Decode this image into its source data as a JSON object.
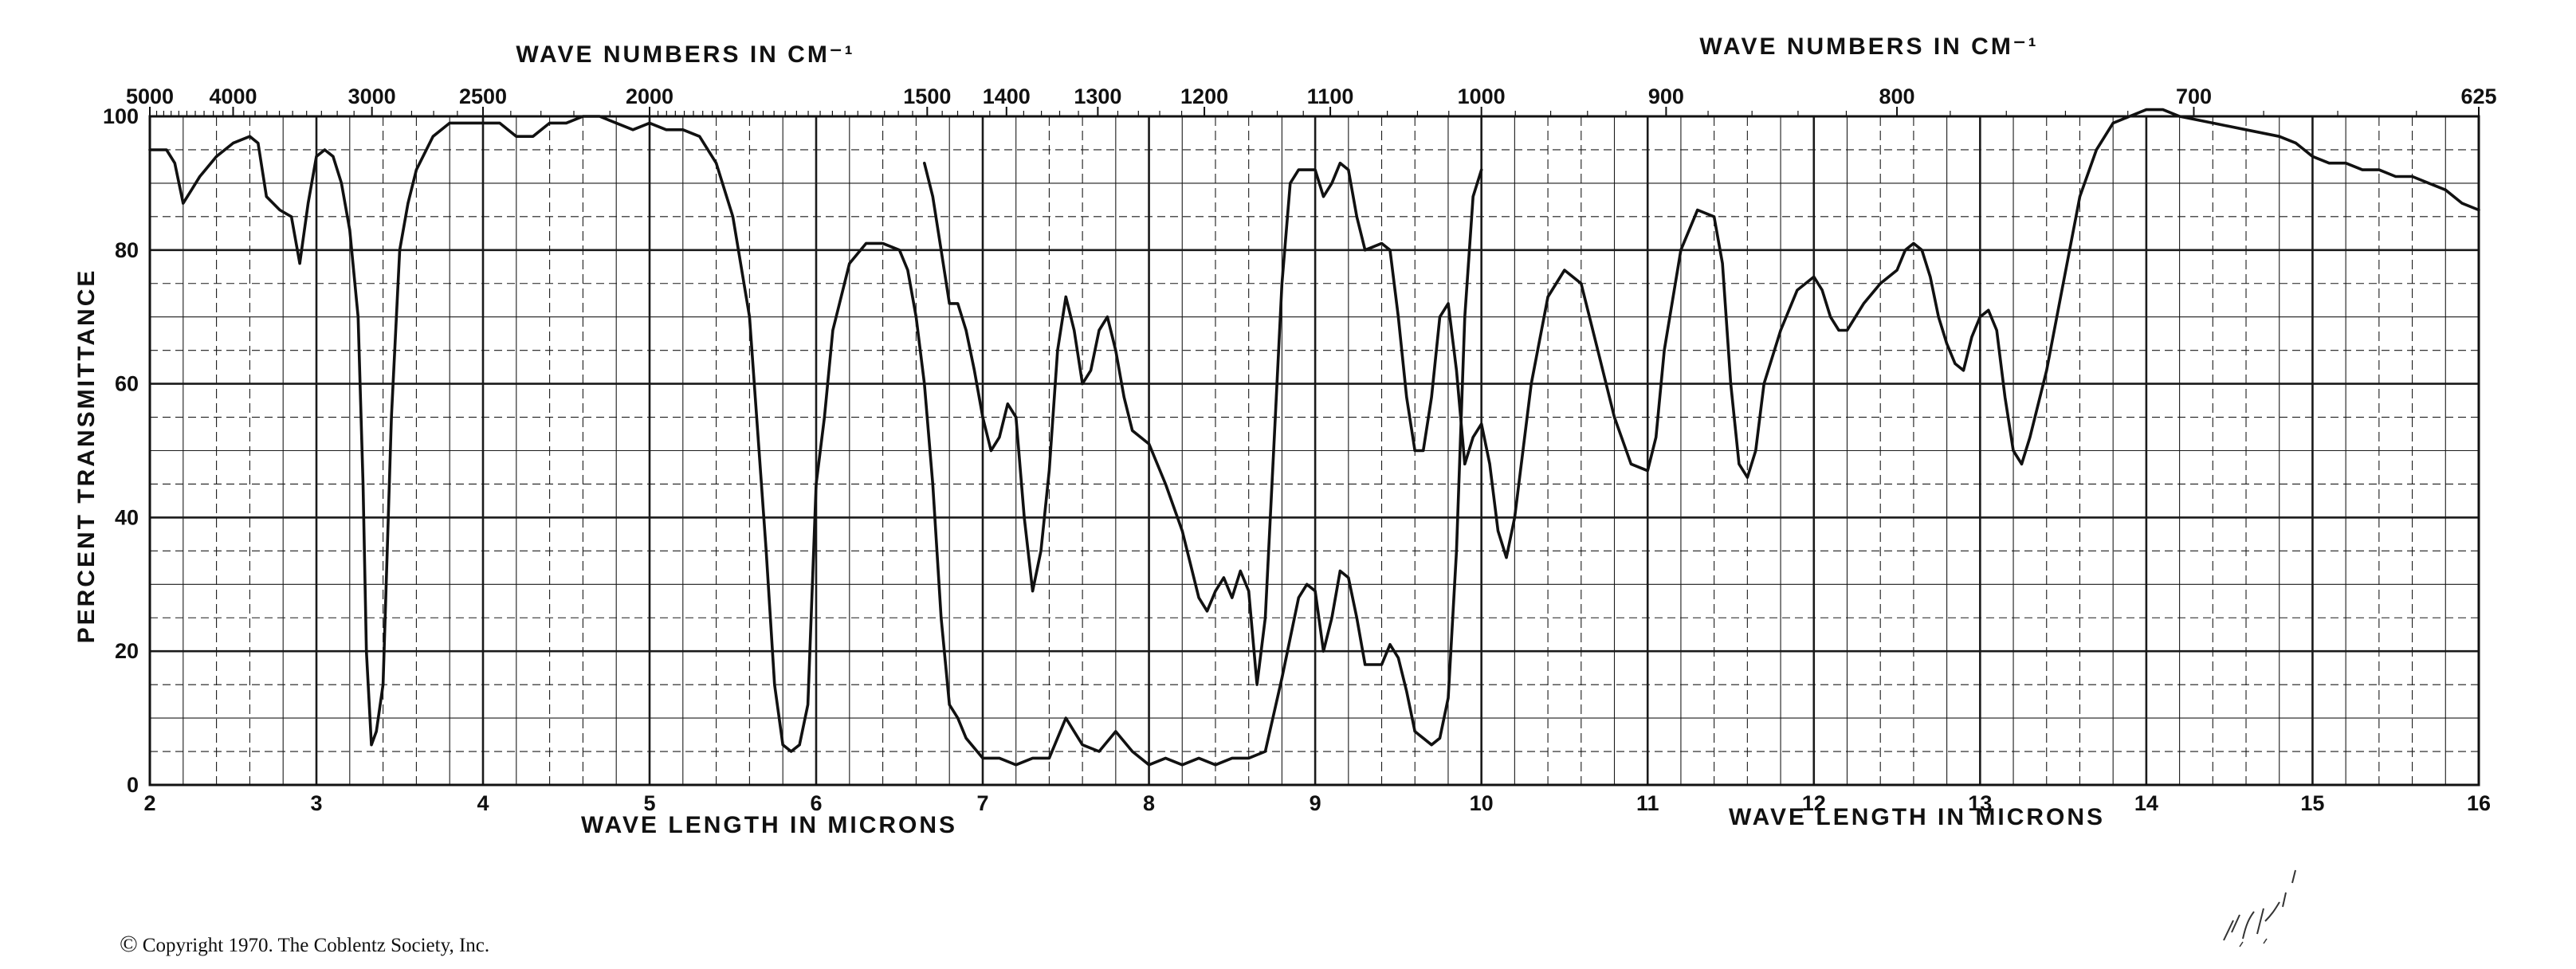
{
  "chart_data": {
    "type": "line",
    "title": "",
    "top_header_left": "WAVE NUMBERS IN CM⁻¹",
    "top_header_right": "WAVE NUMBERS IN CM⁻¹",
    "xlabel_left": "WAVE LENGTH IN MICRONS",
    "xlabel_right": "WAVE LENGTH IN MICRONS",
    "ylabel": "PERCENT TRANSMITTANCE",
    "xlim": [
      2,
      16
    ],
    "ylim": [
      0,
      100
    ],
    "x_unit": "microns",
    "grid": true,
    "legend": "none",
    "x_ticks": [
      "2",
      "3",
      "4",
      "5",
      "6",
      "7",
      "8",
      "9",
      "10",
      "11",
      "12",
      "13",
      "14",
      "15",
      "16"
    ],
    "y_ticks": [
      "0",
      "20",
      "40",
      "60",
      "80",
      "100"
    ],
    "top_ticks": [
      "5000",
      "4000",
      "3000",
      "2500",
      "2000",
      "1500",
      "1400",
      "1300",
      "1200",
      "1100",
      "1000",
      "900",
      "800",
      "700",
      "625"
    ],
    "series": [
      {
        "points": [
          [
            2.0,
            95
          ],
          [
            2.1,
            95
          ],
          [
            2.15,
            93
          ],
          [
            2.2,
            87
          ],
          [
            2.25,
            89
          ],
          [
            2.3,
            91
          ],
          [
            2.4,
            94
          ],
          [
            2.5,
            96
          ],
          [
            2.6,
            97
          ],
          [
            2.65,
            96
          ],
          [
            2.7,
            88
          ],
          [
            2.78,
            86
          ],
          [
            2.85,
            85
          ],
          [
            2.9,
            78
          ],
          [
            2.95,
            87
          ],
          [
            3.0,
            94
          ],
          [
            3.05,
            95
          ],
          [
            3.1,
            94
          ],
          [
            3.15,
            90
          ],
          [
            3.2,
            83
          ],
          [
            3.25,
            70
          ],
          [
            3.28,
            45
          ],
          [
            3.3,
            20
          ],
          [
            3.33,
            6
          ],
          [
            3.36,
            8
          ],
          [
            3.4,
            15
          ],
          [
            3.45,
            55
          ],
          [
            3.5,
            80
          ],
          [
            3.55,
            87
          ],
          [
            3.6,
            92
          ],
          [
            3.7,
            97
          ],
          [
            3.8,
            99
          ],
          [
            4.0,
            99
          ],
          [
            4.1,
            99
          ],
          [
            4.2,
            97
          ],
          [
            4.3,
            97
          ],
          [
            4.4,
            99
          ],
          [
            4.5,
            99
          ],
          [
            4.6,
            100
          ],
          [
            4.7,
            100
          ],
          [
            4.8,
            99
          ],
          [
            4.9,
            98
          ],
          [
            5.0,
            99
          ],
          [
            5.1,
            98
          ],
          [
            5.2,
            98
          ],
          [
            5.3,
            97
          ],
          [
            5.4,
            93
          ],
          [
            5.5,
            85
          ],
          [
            5.6,
            70
          ],
          [
            5.7,
            35
          ],
          [
            5.75,
            15
          ],
          [
            5.8,
            6
          ],
          [
            5.85,
            5
          ],
          [
            5.9,
            6
          ],
          [
            5.95,
            12
          ],
          [
            6.0,
            45
          ],
          [
            6.05,
            55
          ],
          [
            6.1,
            68
          ],
          [
            6.2,
            78
          ],
          [
            6.3,
            81
          ],
          [
            6.4,
            81
          ],
          [
            6.5,
            80
          ],
          [
            6.55,
            77
          ],
          [
            6.6,
            70
          ],
          [
            6.65,
            60
          ],
          [
            6.7,
            45
          ],
          [
            6.75,
            25
          ],
          [
            6.8,
            12
          ],
          [
            6.85,
            10
          ],
          [
            6.9,
            7
          ],
          [
            7.0,
            4
          ],
          [
            7.1,
            4
          ],
          [
            7.2,
            3
          ],
          [
            7.3,
            4
          ],
          [
            7.4,
            4
          ],
          [
            7.5,
            10
          ],
          [
            7.55,
            8
          ],
          [
            7.6,
            6
          ],
          [
            7.7,
            5
          ],
          [
            7.8,
            8
          ],
          [
            7.9,
            5
          ],
          [
            8.0,
            3
          ],
          [
            8.1,
            4
          ],
          [
            8.2,
            3
          ],
          [
            8.3,
            4
          ],
          [
            8.4,
            3
          ],
          [
            8.5,
            4
          ],
          [
            8.6,
            4
          ],
          [
            8.7,
            5
          ],
          [
            8.8,
            16
          ],
          [
            8.9,
            28
          ],
          [
            8.95,
            30
          ],
          [
            9.0,
            29
          ],
          [
            9.05,
            20
          ],
          [
            9.1,
            25
          ],
          [
            9.15,
            32
          ],
          [
            9.2,
            31
          ],
          [
            9.25,
            25
          ],
          [
            9.3,
            18
          ],
          [
            9.4,
            18
          ],
          [
            9.45,
            21
          ],
          [
            9.5,
            19
          ],
          [
            9.55,
            14
          ],
          [
            9.6,
            8
          ],
          [
            9.65,
            7
          ],
          [
            9.7,
            6
          ],
          [
            9.75,
            7
          ],
          [
            9.8,
            13
          ],
          [
            9.85,
            35
          ],
          [
            9.9,
            70
          ],
          [
            9.95,
            88
          ],
          [
            10.0,
            92
          ]
        ]
      },
      {
        "points": [
          [
            6.65,
            93
          ],
          [
            6.7,
            88
          ],
          [
            6.75,
            80
          ],
          [
            6.8,
            72
          ],
          [
            6.85,
            72
          ],
          [
            6.9,
            68
          ],
          [
            6.95,
            62
          ],
          [
            7.0,
            55
          ],
          [
            7.05,
            50
          ],
          [
            7.1,
            52
          ],
          [
            7.15,
            57
          ],
          [
            7.2,
            55
          ],
          [
            7.25,
            40
          ],
          [
            7.3,
            29
          ],
          [
            7.35,
            35
          ],
          [
            7.4,
            47
          ],
          [
            7.45,
            65
          ],
          [
            7.5,
            73
          ],
          [
            7.55,
            68
          ],
          [
            7.6,
            60
          ],
          [
            7.65,
            62
          ],
          [
            7.7,
            68
          ],
          [
            7.75,
            70
          ],
          [
            7.8,
            65
          ],
          [
            7.85,
            58
          ],
          [
            7.9,
            53
          ],
          [
            8.0,
            51
          ],
          [
            8.1,
            45
          ],
          [
            8.2,
            38
          ],
          [
            8.3,
            28
          ],
          [
            8.35,
            26
          ],
          [
            8.4,
            29
          ],
          [
            8.45,
            31
          ],
          [
            8.5,
            28
          ],
          [
            8.55,
            32
          ],
          [
            8.6,
            29
          ],
          [
            8.65,
            15
          ],
          [
            8.7,
            25
          ],
          [
            8.75,
            50
          ],
          [
            8.8,
            75
          ],
          [
            8.85,
            90
          ],
          [
            8.9,
            92
          ],
          [
            9.0,
            92
          ],
          [
            9.05,
            88
          ],
          [
            9.1,
            90
          ],
          [
            9.15,
            93
          ],
          [
            9.2,
            92
          ],
          [
            9.25,
            85
          ],
          [
            9.3,
            80
          ],
          [
            9.4,
            81
          ],
          [
            9.45,
            80
          ],
          [
            9.5,
            70
          ],
          [
            9.55,
            58
          ],
          [
            9.6,
            50
          ],
          [
            9.65,
            50
          ],
          [
            9.7,
            58
          ],
          [
            9.75,
            70
          ],
          [
            9.8,
            72
          ],
          [
            9.85,
            62
          ],
          [
            9.9,
            48
          ],
          [
            9.95,
            52
          ],
          [
            10.0,
            54
          ],
          [
            10.05,
            48
          ],
          [
            10.1,
            38
          ],
          [
            10.15,
            34
          ],
          [
            10.2,
            40
          ],
          [
            10.3,
            60
          ],
          [
            10.4,
            73
          ],
          [
            10.5,
            77
          ],
          [
            10.6,
            75
          ],
          [
            10.7,
            65
          ],
          [
            10.8,
            55
          ],
          [
            10.9,
            48
          ],
          [
            11.0,
            47
          ],
          [
            11.05,
            52
          ],
          [
            11.1,
            65
          ],
          [
            11.2,
            80
          ],
          [
            11.3,
            86
          ],
          [
            11.4,
            85
          ],
          [
            11.45,
            78
          ],
          [
            11.5,
            60
          ],
          [
            11.55,
            48
          ],
          [
            11.6,
            46
          ],
          [
            11.65,
            50
          ],
          [
            11.7,
            60
          ],
          [
            11.8,
            68
          ],
          [
            11.9,
            74
          ],
          [
            12.0,
            76
          ],
          [
            12.05,
            74
          ],
          [
            12.1,
            70
          ],
          [
            12.15,
            68
          ],
          [
            12.2,
            68
          ],
          [
            12.3,
            72
          ],
          [
            12.4,
            75
          ],
          [
            12.5,
            77
          ],
          [
            12.55,
            80
          ],
          [
            12.6,
            81
          ],
          [
            12.65,
            80
          ],
          [
            12.7,
            76
          ],
          [
            12.75,
            70
          ],
          [
            12.8,
            66
          ],
          [
            12.85,
            63
          ],
          [
            12.9,
            62
          ],
          [
            12.95,
            67
          ],
          [
            13.0,
            70
          ],
          [
            13.05,
            71
          ],
          [
            13.1,
            68
          ],
          [
            13.15,
            58
          ],
          [
            13.2,
            50
          ],
          [
            13.25,
            48
          ],
          [
            13.3,
            52
          ],
          [
            13.4,
            62
          ],
          [
            13.5,
            75
          ],
          [
            13.6,
            88
          ],
          [
            13.7,
            95
          ],
          [
            13.8,
            99
          ],
          [
            13.9,
            100
          ],
          [
            14.0,
            101
          ],
          [
            14.1,
            101
          ],
          [
            14.2,
            100
          ],
          [
            14.4,
            99
          ],
          [
            14.6,
            98
          ],
          [
            14.8,
            97
          ],
          [
            14.9,
            96
          ],
          [
            15.0,
            94
          ],
          [
            15.1,
            93
          ],
          [
            15.2,
            93
          ],
          [
            15.3,
            92
          ],
          [
            15.4,
            92
          ],
          [
            15.5,
            91
          ],
          [
            15.6,
            91
          ],
          [
            15.7,
            90
          ],
          [
            15.8,
            89
          ],
          [
            15.9,
            87
          ],
          [
            16.0,
            86
          ]
        ]
      }
    ]
  },
  "footer": {
    "copyright_symbol": "©",
    "copyright_text": "Copyright 1970.  The Coblentz Society, Inc."
  },
  "colors": {
    "ink": "#111111",
    "grid": "#1a1a1a",
    "background": "#ffffff"
  }
}
